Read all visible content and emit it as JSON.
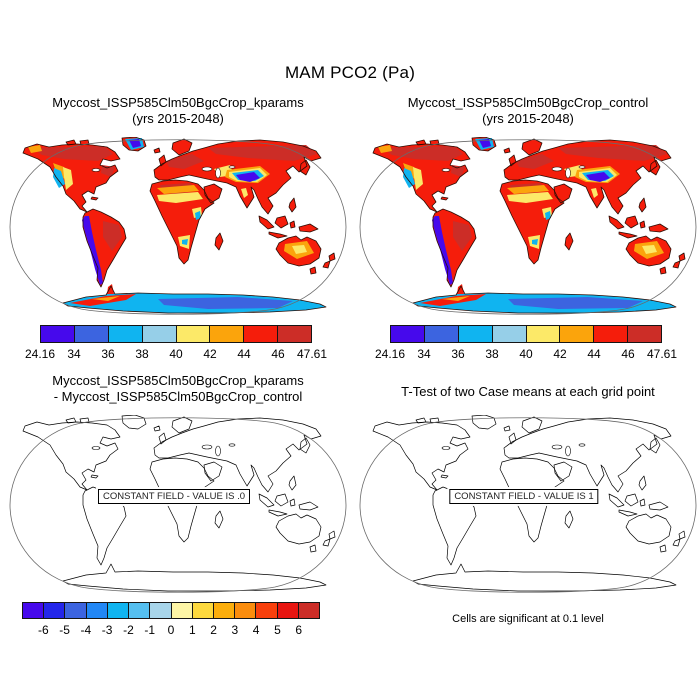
{
  "figure": {
    "title": "MAM PCO2 (Pa)"
  },
  "panels": {
    "top_left": {
      "title_line1": "Myccost_ISSP585Clm50BgcCrop_kparams",
      "title_line2": "(yrs 2015-2048)"
    },
    "top_right": {
      "title_line1": "Myccost_ISSP585Clm50BgcCrop_control",
      "title_line2": "(yrs 2015-2048)"
    },
    "bottom_left": {
      "title_line1": "Myccost_ISSP585Clm50BgcCrop_kparams",
      "title_line2": "- Myccost_ISSP585Clm50BgcCrop_control",
      "overlay_label": "CONSTANT FIELD - VALUE IS .0"
    },
    "bottom_right": {
      "title": "T-Test of two Case means at each grid point",
      "overlay_label": "CONSTANT FIELD - VALUE IS 1",
      "caption": "Cells are significant at 0.1 level"
    }
  },
  "colorbars": {
    "top_left": {
      "colors": [
        "#4609ec",
        "#3c64e0",
        "#10b4f0",
        "#96cfe8",
        "#fce968",
        "#fba40c",
        "#f51d0b",
        "#cc2d27"
      ],
      "ticks": [
        "24.16",
        "34",
        "36",
        "38",
        "40",
        "42",
        "44",
        "46",
        "47.61"
      ],
      "tick_mode": "edges"
    },
    "top_right": {
      "colors": [
        "#4609ec",
        "#3c64e0",
        "#10b4f0",
        "#96cfe8",
        "#fce968",
        "#fba40c",
        "#f51d0b",
        "#cc2d27"
      ],
      "ticks": [
        "24.16",
        "34",
        "36",
        "38",
        "40",
        "42",
        "44",
        "46",
        "47.61"
      ],
      "tick_mode": "edges"
    },
    "bottom_left": {
      "colors": [
        "#4609ec",
        "#2426ea",
        "#3c64e0",
        "#2287f5",
        "#10b4f0",
        "#55bff0",
        "#a8d5ea",
        "#fdf5a6",
        "#fdd93e",
        "#fcae0c",
        "#fb8d0d",
        "#f8400c",
        "#e81510",
        "#cc2d27"
      ],
      "ticks": [
        "-6",
        "-5",
        "-4",
        "-3",
        "-2",
        "-1",
        "0",
        "1",
        "2",
        "3",
        "4",
        "5",
        "6"
      ],
      "tick_mode": "inner"
    }
  },
  "chart_data": {
    "type": "heatmap",
    "title": "MAM PCO2 (Pa)",
    "projection": "robinson-world-map",
    "panels": [
      {
        "name": "Myccost_ISSP585Clm50BgcCrop_kparams (yrs 2015-2048)",
        "min": 24.16,
        "max": 47.61,
        "colorbar_levels": [
          24.16,
          34,
          36,
          38,
          40,
          42,
          44,
          46,
          47.61
        ]
      },
      {
        "name": "Myccost_ISSP585Clm50BgcCrop_control (yrs 2015-2048)",
        "min": 24.16,
        "max": 47.61,
        "colorbar_levels": [
          24.16,
          34,
          36,
          38,
          40,
          42,
          44,
          46,
          47.61
        ]
      },
      {
        "name": "Myccost_ISSP585Clm50BgcCrop_kparams - Myccost_ISSP585Clm50BgcCrop_control",
        "constant_field_value": 0.0,
        "colorbar_levels": [
          -6,
          -5,
          -4,
          -3,
          -2,
          -1,
          0,
          1,
          2,
          3,
          4,
          5,
          6
        ]
      },
      {
        "name": "T-Test of two Case means at each grid point",
        "constant_field_value": 1,
        "note": "Cells are significant at 0.1 level"
      }
    ]
  }
}
